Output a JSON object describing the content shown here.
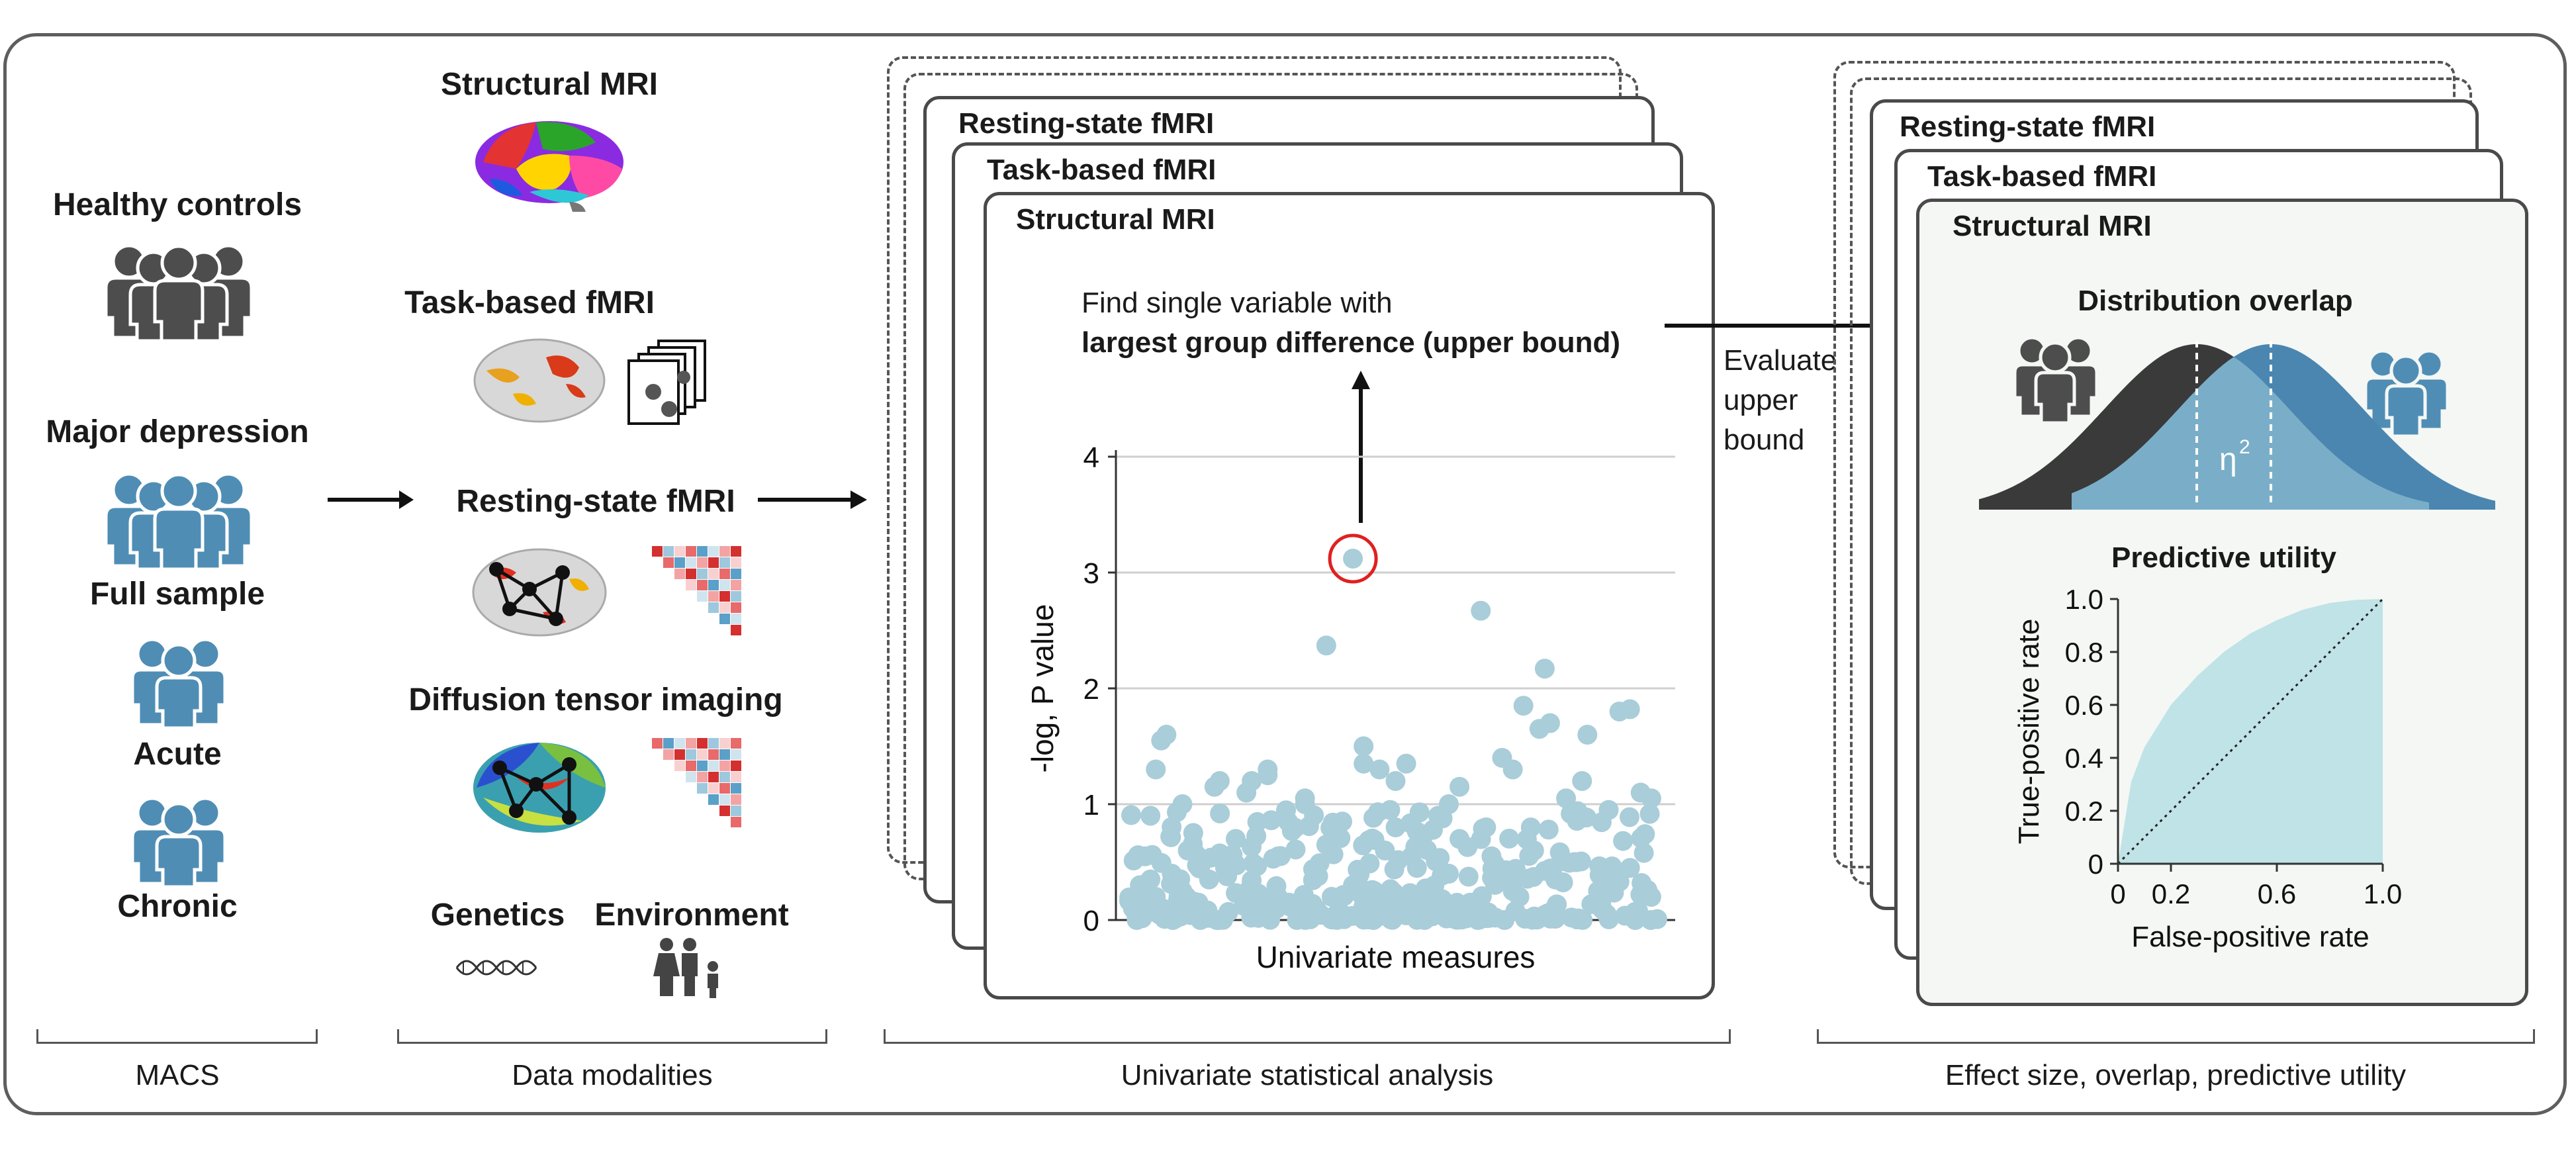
{
  "macs": {
    "healthy_controls": "Healthy controls",
    "major_depression": "Major depression",
    "full_sample": "Full sample",
    "acute": "Acute",
    "chronic": "Chronic"
  },
  "modalities": {
    "structural_mri": "Structural MRI",
    "task_fmri": "Task-based fMRI",
    "resting_fmri": "Resting-state fMRI",
    "dti": "Diffusion tensor imaging",
    "genetics": "Genetics",
    "environment": "Environment"
  },
  "univariate": {
    "stack_labels": [
      "Resting-state fMRI",
      "Task-based fMRI",
      "Structural MRI"
    ],
    "annotation_line1": "Find single variable with",
    "annotation_line2": "largest group difference (upper bound)",
    "evaluate_label_1": "Evaluate",
    "evaluate_label_2": "upper",
    "evaluate_label_3": "bound"
  },
  "effect": {
    "stack_labels": [
      "Resting-state fMRI",
      "Task-based fMRI",
      "Structural MRI"
    ],
    "distribution_title": "Distribution overlap",
    "eta_label": "η",
    "eta_sup": "2",
    "predictive_title": "Predictive utility"
  },
  "bottom_labels": {
    "macs": "MACS",
    "data_modalities": "Data modalities",
    "univariate": "Univariate statistical analysis",
    "effect": "Effect size, overlap, predictive utility"
  },
  "colors": {
    "frame": "#5e5e5e",
    "control_gray": "#4d4d4d",
    "depression_blue": "#4f8db5",
    "point": "#a9cdd9",
    "highlight": "#e02020",
    "dist_dark": "#3a3a3a",
    "dist_blue": "#4a86b0",
    "roc_fill": "#bfe3e6"
  },
  "chart_data": [
    {
      "type": "scatter",
      "title": "",
      "xlabel": "Univariate measures",
      "ylabel": "-log, P value",
      "ylim": [
        0,
        4
      ],
      "yticks": [
        "0",
        "1",
        "2",
        "3",
        "4"
      ],
      "grid": true,
      "highlight_point": {
        "x": 0.42,
        "y": 3.12
      },
      "x": [
        0.02,
        0.03,
        0.04,
        0.05,
        0.06,
        0.07,
        0.02,
        0.05,
        0.08,
        0.1,
        0.11,
        0.13,
        0.15,
        0.17,
        0.18,
        0.2,
        0.22,
        0.24,
        0.26,
        0.28,
        0.3,
        0.33,
        0.35,
        0.37,
        0.38,
        0.4,
        0.42,
        0.44,
        0.46,
        0.48,
        0.5,
        0.52,
        0.54,
        0.56,
        0.58,
        0.6,
        0.62,
        0.64,
        0.66,
        0.68,
        0.7,
        0.72,
        0.74,
        0.76,
        0.78,
        0.8,
        0.82,
        0.84,
        0.86,
        0.88,
        0.9,
        0.92,
        0.94,
        0.96,
        0.98,
        0.5,
        0.37,
        0.6,
        0.72,
        0.79,
        0.77,
        0.85,
        0.94,
        0.98,
        0.53,
        0.55,
        0.44,
        0.47,
        0.67,
        0.62,
        0.23,
        0.26,
        0.1,
        0.16,
        0.33,
        0.49,
        0.02,
        0.04
      ],
      "y": [
        0.3,
        0.55,
        0.9,
        1.3,
        1.55,
        1.6,
        0.1,
        0.2,
        0.4,
        0.25,
        0.6,
        0.15,
        0.35,
        1.2,
        0.45,
        0.7,
        1.1,
        0.2,
        1.3,
        0.55,
        0.15,
        1.05,
        0.4,
        0.65,
        0.2,
        0.85,
        0.3,
        1.5,
        0.25,
        0.6,
        0.8,
        1.35,
        0.45,
        0.2,
        0.9,
        0.4,
        0.7,
        0.15,
        2.67,
        0.55,
        1.4,
        0.25,
        1.85,
        0.6,
        2.17,
        0.35,
        1.05,
        0.5,
        1.6,
        0.25,
        0.95,
        1.8,
        0.45,
        1.1,
        0.2,
        1.2,
        2.37,
        1.0,
        1.3,
        1.7,
        1.65,
        1.2,
        1.82,
        1.05,
        0.55,
        0.7,
        1.35,
        1.3,
        0.8,
        1.15,
        1.2,
        1.25,
        1.0,
        1.15,
        1.0,
        0.95,
        0.15,
        0.35
      ],
      "note": "scatter of roughly 300 measures mostly below 1"
    },
    {
      "type": "line",
      "title": "Predictive utility",
      "xlabel": "False-positive rate",
      "ylabel": "True-positive rate",
      "xlim": [
        0,
        1
      ],
      "ylim": [
        0,
        1
      ],
      "xticks": [
        "0",
        "0.2",
        "0.6",
        "1.0"
      ],
      "yticks": [
        "0",
        "0.2",
        "0.4",
        "0.6",
        "0.8",
        "1.0"
      ],
      "series": [
        {
          "x": [
            0,
            0.05,
            0.1,
            0.2,
            0.3,
            0.4,
            0.5,
            0.6,
            0.7,
            0.8,
            0.9,
            1.0
          ],
          "values": [
            0,
            0.31,
            0.44,
            0.6,
            0.71,
            0.8,
            0.87,
            0.92,
            0.96,
            0.985,
            0.997,
            1.0
          ]
        },
        {
          "x": [
            0,
            1
          ],
          "values": [
            0,
            1
          ]
        }
      ]
    }
  ]
}
